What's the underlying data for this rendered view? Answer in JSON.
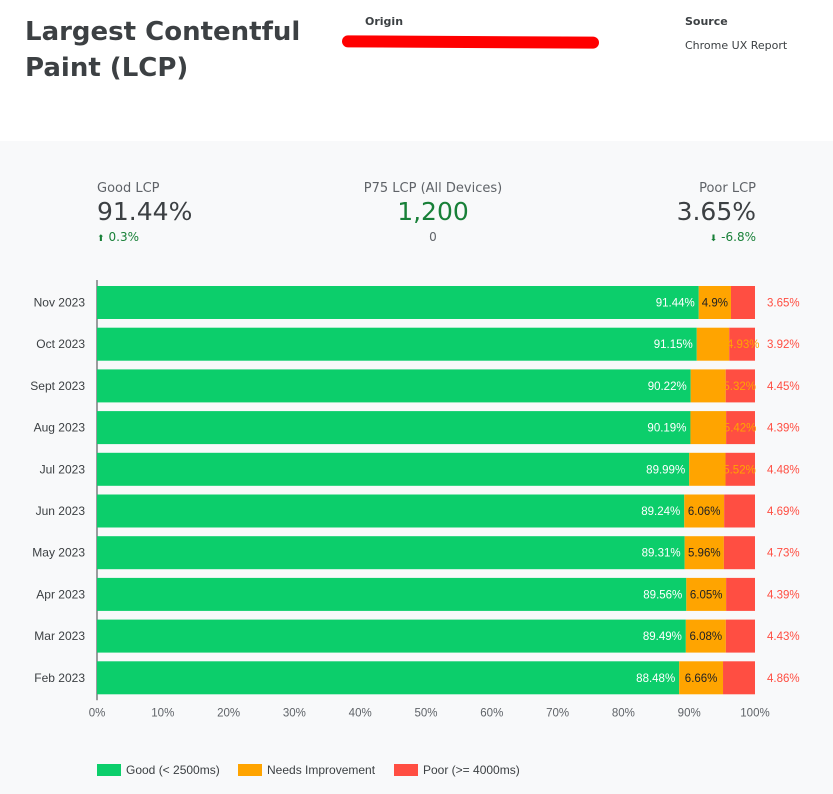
{
  "header": {
    "title": "Largest Contentful Paint (LCP)",
    "origin_label": "Origin",
    "source_label": "Source",
    "source_value": "Chrome UX Report"
  },
  "kpis": {
    "good": {
      "label": "Good LCP",
      "value": "91.44%",
      "delta": "0.3%",
      "direction": "up"
    },
    "p75": {
      "label": "P75 LCP (All Devices)",
      "value": "1,200",
      "delta": "0"
    },
    "poor": {
      "label": "Poor LCP",
      "value": "3.65%",
      "delta": "-6.8%",
      "direction": "down"
    }
  },
  "colors": {
    "good": "#0cce6b",
    "needs": "#ffa400",
    "poor": "#ff4e42"
  },
  "chart_data": {
    "type": "bar",
    "orientation": "horizontal",
    "stacked": true,
    "categories": [
      "Nov 2023",
      "Oct 2023",
      "Sept 2023",
      "Aug 2023",
      "Jul 2023",
      "Jun 2023",
      "May 2023",
      "Apr 2023",
      "Mar 2023",
      "Feb 2023"
    ],
    "series": [
      {
        "name": "Good (< 2500ms)",
        "values": [
          91.44,
          91.15,
          90.22,
          90.19,
          89.99,
          89.24,
          89.31,
          89.56,
          89.49,
          88.48
        ]
      },
      {
        "name": "Needs Improvement",
        "values": [
          4.9,
          4.93,
          5.32,
          5.42,
          5.52,
          6.06,
          5.96,
          6.05,
          6.08,
          6.66
        ]
      },
      {
        "name": "Poor (>= 4000ms)",
        "values": [
          3.65,
          3.92,
          4.45,
          4.39,
          4.48,
          4.69,
          4.73,
          4.39,
          4.43,
          4.86
        ]
      }
    ],
    "good_labels": [
      "91.44%",
      "91.15%",
      "90.22%",
      "90.19%",
      "89.99%",
      "89.24%",
      "89.31%",
      "89.56%",
      "89.49%",
      "88.48%"
    ],
    "needs_labels": [
      "4.9%",
      "4.93%",
      "5.32%",
      "5.42%",
      "5.52%",
      "6.06%",
      "5.96%",
      "6.05%",
      "6.08%",
      "6.66%"
    ],
    "poor_labels": [
      "3.65%",
      "3.92%",
      "4.45%",
      "4.39%",
      "4.48%",
      "4.69%",
      "4.73%",
      "4.39%",
      "4.43%",
      "4.86%"
    ],
    "xticks": [
      "0%",
      "10%",
      "20%",
      "30%",
      "40%",
      "50%",
      "60%",
      "70%",
      "80%",
      "90%",
      "100%"
    ],
    "xlim": [
      0,
      100
    ],
    "grid": false,
    "legend_position": "bottom-left"
  }
}
